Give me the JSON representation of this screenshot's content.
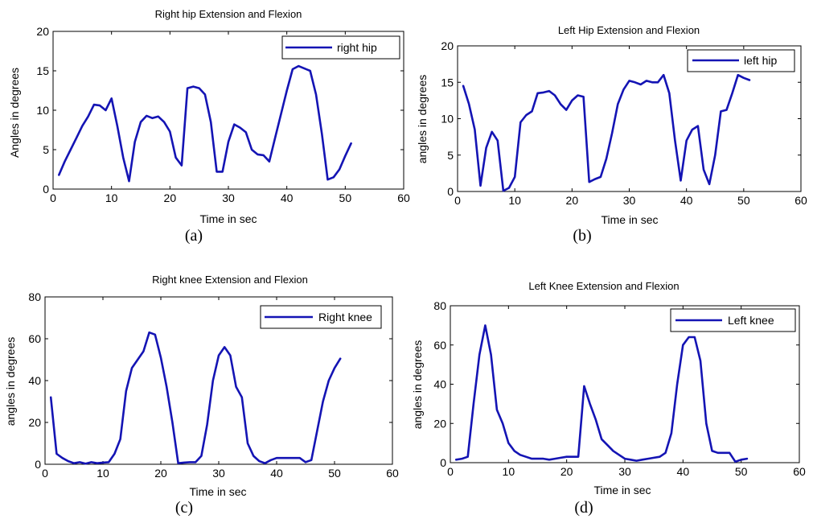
{
  "colors": {
    "series": "#1414b4",
    "axes": "#000000",
    "background": "#ffffff"
  },
  "chart_data": [
    {
      "type": "line",
      "title": "Right hip Extension and Flexion",
      "xlabel": "Time in sec",
      "ylabel": "Angles in degrees",
      "caption": "(a)",
      "xlim": [
        0,
        60
      ],
      "ylim": [
        0,
        20
      ],
      "xticks": [
        0,
        10,
        20,
        30,
        40,
        50,
        60
      ],
      "yticks": [
        0,
        5,
        10,
        15,
        20
      ],
      "legend_position": "top-right",
      "series": [
        {
          "name": "right hip",
          "x": [
            1,
            2,
            3,
            4,
            5,
            6,
            7,
            8,
            9,
            10,
            11,
            12,
            13,
            14,
            15,
            16,
            17,
            18,
            19,
            20,
            21,
            22,
            23,
            24,
            25,
            26,
            27,
            28,
            29,
            30,
            31,
            32,
            33,
            34,
            35,
            36,
            37,
            38,
            39,
            40,
            41,
            42,
            43,
            44,
            45,
            46,
            47,
            48,
            49,
            50,
            51
          ],
          "y": [
            1.8,
            3.5,
            5,
            6.5,
            8,
            9.2,
            10.7,
            10.6,
            10,
            11.5,
            8,
            4,
            1,
            6,
            8.5,
            9.3,
            9,
            9.2,
            8.5,
            7.3,
            4,
            3,
            12.8,
            13,
            12.8,
            12,
            8.5,
            2.2,
            2.2,
            6,
            8.2,
            7.8,
            7.2,
            5,
            4.4,
            4.3,
            3.5,
            6.5,
            9.5,
            12.5,
            15.2,
            15.6,
            15.3,
            15,
            12,
            7,
            1.2,
            1.5,
            2.5,
            4.2,
            5.8
          ]
        }
      ]
    },
    {
      "type": "line",
      "title": "Left Hip Extension and Flexion",
      "xlabel": "Time in sec",
      "ylabel": "angles in degrees",
      "caption": "(b)",
      "xlim": [
        0,
        60
      ],
      "ylim": [
        0,
        20
      ],
      "xticks": [
        0,
        10,
        20,
        30,
        40,
        50,
        60
      ],
      "yticks": [
        0,
        5,
        10,
        15,
        20
      ],
      "legend_position": "top-right",
      "series": [
        {
          "name": "left hip",
          "x": [
            1,
            2,
            3,
            4,
            5,
            6,
            7,
            8,
            9,
            10,
            11,
            12,
            13,
            14,
            15,
            16,
            17,
            18,
            19,
            20,
            21,
            22,
            23,
            24,
            25,
            26,
            27,
            28,
            29,
            30,
            31,
            32,
            33,
            34,
            35,
            36,
            37,
            38,
            39,
            40,
            41,
            42,
            43,
            44,
            45,
            46,
            47,
            48,
            49,
            50,
            51
          ],
          "y": [
            14.5,
            12,
            8.5,
            0.8,
            6,
            8.2,
            7,
            0.1,
            0.5,
            2,
            9.5,
            10.5,
            11,
            13.5,
            13.6,
            13.8,
            13.2,
            12,
            11.2,
            12.5,
            13.2,
            13,
            1.3,
            1.7,
            2,
            4.5,
            8,
            12,
            14,
            15.2,
            15,
            14.7,
            15.2,
            15,
            15,
            16,
            13.5,
            7,
            1.5,
            7,
            8.5,
            9,
            3,
            1,
            5,
            11,
            11.2,
            13.5,
            16,
            15.6,
            15.3
          ]
        }
      ]
    },
    {
      "type": "line",
      "title": "Right knee Extension and Flexion",
      "xlabel": "Time in sec",
      "ylabel": "angles in degrees",
      "caption": "(c)",
      "xlim": [
        0,
        60
      ],
      "ylim": [
        0,
        80
      ],
      "xticks": [
        0,
        10,
        20,
        30,
        40,
        50,
        60
      ],
      "yticks": [
        0,
        20,
        40,
        60,
        80
      ],
      "legend_position": "top-right",
      "series": [
        {
          "name": "Right knee",
          "x": [
            1,
            2,
            3,
            4,
            5,
            6,
            7,
            8,
            9,
            10,
            11,
            12,
            13,
            14,
            15,
            16,
            17,
            18,
            19,
            20,
            21,
            22,
            23,
            24,
            25,
            26,
            27,
            28,
            29,
            30,
            31,
            32,
            33,
            34,
            35,
            36,
            37,
            38,
            39,
            40,
            41,
            42,
            43,
            44,
            45,
            46,
            47,
            48,
            49,
            50,
            51
          ],
          "y": [
            32,
            5,
            3,
            1.5,
            0.5,
            1,
            0.3,
            1,
            0.5,
            0.8,
            1,
            5,
            12,
            35,
            46,
            50,
            54,
            63,
            62,
            51,
            37,
            20,
            0.5,
            0.8,
            1,
            1,
            4,
            19,
            40,
            52,
            56,
            52,
            37,
            32,
            10,
            4,
            1.5,
            0.5,
            2,
            3,
            3,
            3,
            3,
            3,
            1,
            2,
            16,
            30,
            40,
            46,
            50.5
          ]
        }
      ]
    },
    {
      "type": "line",
      "title": "Left Knee Extension and Flexion",
      "xlabel": "Time in sec",
      "ylabel": "angles in degrees",
      "caption": "(d)",
      "xlim": [
        0,
        60
      ],
      "ylim": [
        0,
        80
      ],
      "xticks": [
        0,
        10,
        20,
        30,
        40,
        50,
        60
      ],
      "yticks": [
        0,
        20,
        40,
        60,
        80
      ],
      "legend_position": "top-right",
      "series": [
        {
          "name": "Left knee",
          "x": [
            1,
            2,
            3,
            4,
            5,
            6,
            7,
            8,
            9,
            10,
            11,
            12,
            13,
            14,
            15,
            16,
            17,
            18,
            19,
            20,
            21,
            22,
            23,
            24,
            25,
            26,
            27,
            28,
            29,
            30,
            31,
            32,
            33,
            34,
            35,
            36,
            37,
            38,
            39,
            40,
            41,
            42,
            43,
            44,
            45,
            46,
            47,
            48,
            49,
            50,
            51
          ],
          "y": [
            1.5,
            2,
            3,
            30,
            55,
            70,
            55,
            27,
            20,
            10,
            6,
            4,
            3,
            2,
            2,
            2,
            1.5,
            2,
            2.5,
            3,
            3,
            3,
            39,
            30,
            22,
            12,
            9,
            6,
            4,
            2,
            1.5,
            1,
            1.5,
            2,
            2.5,
            3,
            5,
            15,
            40,
            60,
            64,
            64,
            52,
            20,
            6,
            5,
            5,
            5,
            0.5,
            1.5,
            2
          ]
        }
      ]
    }
  ]
}
